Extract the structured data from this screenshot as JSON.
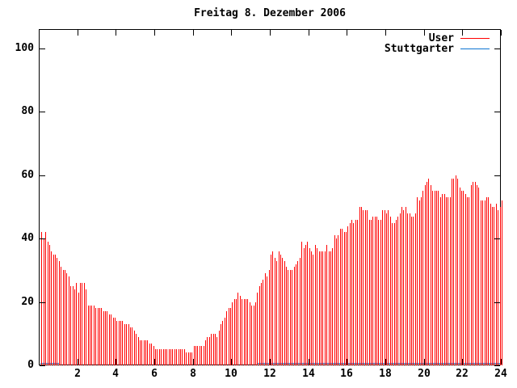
{
  "title": "Freitag 8. Dezember 2006",
  "colors": {
    "user": "#ff0000",
    "stuttgarter": "#0d74d2",
    "axis": "#000000",
    "background": "#ffffff"
  },
  "legend": {
    "position": "top-right-inside",
    "items": [
      {
        "label": "User",
        "color": "#ff0000"
      },
      {
        "label": "Stuttgarter",
        "color": "#0d74d2"
      }
    ]
  },
  "chart_data": {
    "type": "bar",
    "title": "Freitag 8. Dezember 2006",
    "xlabel": "",
    "ylabel": "",
    "xlim": [
      0,
      24
    ],
    "ylim": [
      0,
      106
    ],
    "x_ticks": [
      2,
      4,
      6,
      8,
      10,
      12,
      14,
      16,
      18,
      20,
      22,
      24
    ],
    "y_ticks": [
      0,
      20,
      40,
      60,
      80,
      100
    ],
    "grid": false,
    "series": [
      {
        "name": "User",
        "style": "impulses",
        "color": "#ff0000",
        "x_start": 0.1,
        "x_step": 0.1,
        "values": [
          42,
          40,
          42,
          39,
          38,
          36,
          35,
          35,
          34,
          33,
          31,
          30,
          30,
          29,
          28,
          25,
          25,
          24,
          26,
          23,
          26,
          26,
          26,
          24,
          19,
          19,
          19,
          19,
          18,
          18,
          18,
          18,
          17,
          17,
          17,
          16,
          16,
          15,
          15,
          14,
          14,
          14,
          14,
          13,
          13,
          13,
          12,
          12,
          11,
          10,
          9,
          8,
          8,
          8,
          8,
          8,
          7,
          7,
          6,
          5,
          5,
          5,
          5,
          5,
          5,
          5,
          5,
          5,
          5,
          5,
          5,
          5,
          5,
          5,
          5,
          4,
          4,
          4,
          4,
          6,
          6,
          6,
          6,
          6,
          6,
          8,
          9,
          9,
          10,
          10,
          10,
          9,
          11,
          13,
          14,
          15,
          17,
          18,
          18,
          20,
          21,
          21,
          23,
          22,
          21,
          21,
          21,
          21,
          20,
          19,
          19,
          20,
          23,
          25,
          26,
          27,
          29,
          28,
          30,
          35,
          36,
          34,
          33,
          36,
          35,
          34,
          33,
          31,
          30,
          30,
          30,
          31,
          32,
          33,
          34,
          39,
          37,
          38,
          39,
          37,
          36,
          35,
          38,
          37,
          36,
          36,
          36,
          36,
          38,
          36,
          36,
          37,
          41,
          40,
          41,
          43,
          43,
          42,
          42,
          44,
          45,
          46,
          45,
          46,
          46,
          50,
          50,
          49,
          49,
          49,
          46,
          46,
          47,
          47,
          47,
          46,
          46,
          49,
          49,
          48,
          49,
          47,
          45,
          45,
          46,
          47,
          48,
          50,
          49,
          50,
          48,
          48,
          47,
          47,
          48,
          53,
          52,
          53,
          55,
          57,
          58,
          59,
          57,
          55,
          55,
          55,
          55,
          53,
          54,
          54,
          53,
          53,
          53,
          59,
          59,
          60,
          59,
          56,
          55,
          55,
          54,
          53,
          53,
          57,
          58,
          58,
          57,
          56,
          52,
          52,
          52,
          53,
          53,
          51,
          50,
          50,
          51,
          49,
          50,
          52
        ]
      },
      {
        "name": "Stuttgarter",
        "style": "line",
        "color": "#0d74d2",
        "segments": [
          {
            "x1": 0.05,
            "x2": 1.0,
            "y": 1
          },
          {
            "x1": 11.3,
            "x2": 24.0,
            "y": 1
          }
        ]
      }
    ]
  }
}
